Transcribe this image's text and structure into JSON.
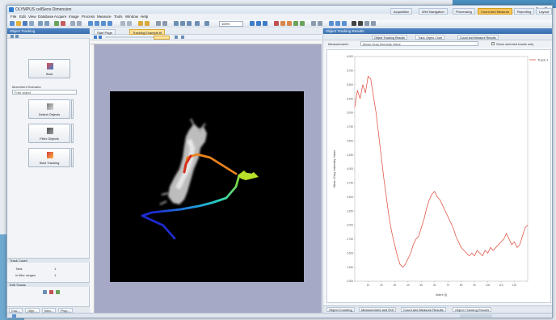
{
  "window": {
    "title": "OLYMPUS cellSens Dimension",
    "layout_tabs": [
      {
        "label": "Acquisition",
        "active": false
      },
      {
        "label": "Well Navigation",
        "active": false
      },
      {
        "label": "Processing",
        "active": false
      },
      {
        "label": "Count and Measure",
        "active": true
      },
      {
        "label": "Reporting",
        "active": false
      },
      {
        "label": "Layout",
        "active": false
      }
    ]
  },
  "menu": [
    "File",
    "Edit",
    "View",
    "Database",
    "Acquire",
    "Image",
    "Process",
    "Measure",
    "Tools",
    "Window",
    "Help"
  ],
  "toolbar": {
    "zoom": "100%"
  },
  "left_panel": {
    "title": "Object Tracking",
    "start_label": "Start",
    "movement_label": "Movement Scenario",
    "movement_value": "Free object",
    "detect_label": "Detect Objects",
    "filter_label": "Filter Objects",
    "start_tracking_label": "Start Tracking",
    "track_count_header": "Track Count",
    "total_label": "Total",
    "total_value": "1",
    "in_filter_label": "in filter ranges",
    "in_filter_value": "1",
    "edit_tracks_header": "Edit Tracks",
    "bottom_tabs": [
      "Cou...",
      "Obje...",
      "Inbo...",
      "Prop..."
    ]
  },
  "document": {
    "tabs": [
      {
        "label": "Start Page",
        "active": false
      },
      {
        "label": "Tracking Example.tif",
        "active": true
      }
    ]
  },
  "right_panel": {
    "title": "Object Tracking Results",
    "sub_tabs": [
      {
        "label": "Object Tracking Results",
        "active": false
      },
      {
        "label": "Track Object Chart",
        "active": true
      },
      {
        "label": "Count and Measure Results",
        "active": false
      }
    ],
    "measurement_label": "Measurement:",
    "measurement_value": "Mean Gray Intensity Value",
    "show_selected_label": "Show selected tracks only",
    "bottom_tabs": [
      "Object Counting",
      "Measurement and ROI",
      "Count and Measure Results",
      "Object Tracking Results"
    ]
  },
  "chart_data": {
    "type": "line",
    "xlabel": "Index (t)",
    "ylabel": "Mean Gray Intensity Value",
    "xlim": [
      0,
      130
    ],
    "ylim": [
      2000,
      6000
    ],
    "series": [
      {
        "name": "Track 1",
        "color": "#e05a4a",
        "x": [
          0,
          2,
          4,
          6,
          8,
          10,
          12,
          14,
          16,
          18,
          20,
          22,
          24,
          26,
          28,
          30,
          32,
          34,
          36,
          38,
          40,
          42,
          44,
          46,
          48,
          50,
          52,
          54,
          56,
          58,
          60,
          62,
          64,
          66,
          68,
          70,
          72,
          74,
          76,
          78,
          80,
          82,
          84,
          86,
          88,
          90,
          92,
          94,
          96,
          98,
          100,
          102,
          104,
          106,
          108,
          110,
          112,
          114,
          116,
          118,
          120,
          122,
          124,
          126,
          128,
          130
        ],
        "y": [
          5100,
          5400,
          5250,
          5500,
          5350,
          5650,
          5600,
          5300,
          5000,
          4600,
          4200,
          3800,
          3450,
          3100,
          2850,
          2650,
          2450,
          2300,
          2250,
          2300,
          2400,
          2500,
          2650,
          2750,
          2800,
          2950,
          3100,
          3300,
          3450,
          3550,
          3600,
          3500,
          3450,
          3350,
          3250,
          3150,
          3050,
          2950,
          2800,
          2700,
          2600,
          2550,
          2500,
          2450,
          2500,
          2450,
          2550,
          2500,
          2450,
          2550,
          2500,
          2600,
          2550,
          2600,
          2650,
          2700,
          2750,
          2850,
          2750,
          2650,
          2700,
          2600,
          2650,
          2800,
          2950,
          3000
        ]
      }
    ],
    "legend": "top-right",
    "grid": false
  }
}
